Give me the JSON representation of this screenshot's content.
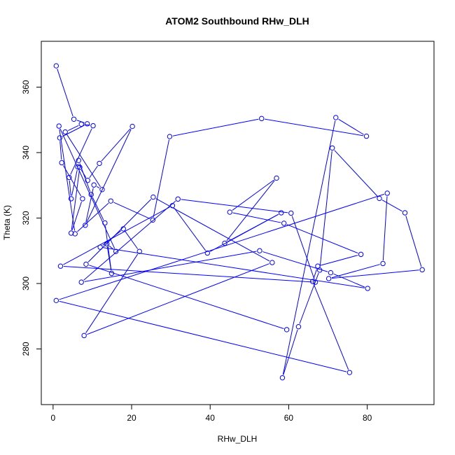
{
  "chart_data": {
    "type": "line",
    "title": "ATOM2 Southbound RHw_DLH",
    "xlabel": "RHw_DLH",
    "ylabel": "Theta (K)",
    "xlim": [
      -3,
      97
    ],
    "ylim": [
      263,
      374
    ],
    "x_ticks": [
      0,
      20,
      40,
      60,
      80
    ],
    "y_ticks": [
      280,
      300,
      320,
      340,
      360
    ],
    "grid": false,
    "legend": "none",
    "series_color": "#0000ff",
    "series": [
      {
        "points": [
          [
            0.8,
            366.5
          ],
          [
            5.3,
            350.2
          ],
          [
            8.7,
            348.8
          ],
          [
            1.7,
            344.5
          ],
          [
            2.2,
            336.9
          ],
          [
            7.5,
            325.9
          ],
          [
            4.6,
            315.4
          ],
          [
            6.8,
            335.5
          ],
          [
            8.8,
            331.5
          ],
          [
            11.8,
            336.7
          ],
          [
            20.2,
            348.0
          ],
          [
            8.2,
            317.8
          ],
          [
            10.4,
            330.1
          ],
          [
            12.5,
            328.7
          ],
          [
            3.1,
            346.3
          ],
          [
            7.2,
            348.7
          ],
          [
            10.2,
            348.2
          ],
          [
            4.1,
            332.4
          ],
          [
            4.6,
            325.9
          ],
          [
            6.3,
            335.6
          ],
          [
            6.5,
            337.6
          ],
          [
            9.7,
            327.2
          ],
          [
            13.2,
            318.5
          ],
          [
            14.9,
            303.1
          ],
          [
            13.7,
            312.1
          ],
          [
            16.0,
            309.8
          ],
          [
            1.5,
            348.1
          ],
          [
            5.6,
            315.2
          ],
          [
            14.7,
            325.2
          ],
          [
            25.4,
            319.4
          ],
          [
            29.7,
            344.9
          ],
          [
            53.1,
            350.4
          ],
          [
            79.8,
            345.0
          ],
          [
            72.0,
            350.7
          ],
          [
            58.4,
            271.2
          ],
          [
            62.5,
            286.8
          ],
          [
            67.9,
            304.1
          ],
          [
            71.1,
            341.4
          ],
          [
            83.1,
            326.0
          ],
          [
            89.6,
            321.6
          ],
          [
            94.0,
            304.2
          ],
          [
            70.2,
            301.5
          ],
          [
            84.0,
            306.1
          ],
          [
            85.1,
            327.6
          ],
          [
            0.8,
            294.8
          ],
          [
            75.5,
            272.8
          ],
          [
            66.1,
            300.6
          ],
          [
            67.4,
            305.3
          ],
          [
            78.4,
            308.9
          ],
          [
            58.8,
            318.4
          ],
          [
            45.0,
            321.8
          ],
          [
            56.9,
            332.2
          ],
          [
            43.7,
            312.3
          ],
          [
            58.1,
            321.6
          ],
          [
            39.3,
            309.3
          ],
          [
            30.4,
            323.8
          ],
          [
            1.9,
            305.3
          ],
          [
            66.8,
            300.4
          ],
          [
            60.6,
            321.5
          ],
          [
            31.8,
            325.8
          ],
          [
            7.2,
            300.4
          ],
          [
            52.6,
            310.0
          ],
          [
            70.7,
            303.3
          ],
          [
            80.1,
            298.5
          ],
          [
            12.0,
            311.1
          ],
          [
            17.9,
            316.7
          ],
          [
            22.0,
            309.8
          ],
          [
            7.9,
            284.1
          ],
          [
            55.8,
            306.4
          ],
          [
            25.5,
            326.4
          ],
          [
            8.4,
            305.9
          ],
          [
            59.5,
            285.9
          ]
        ]
      }
    ]
  }
}
